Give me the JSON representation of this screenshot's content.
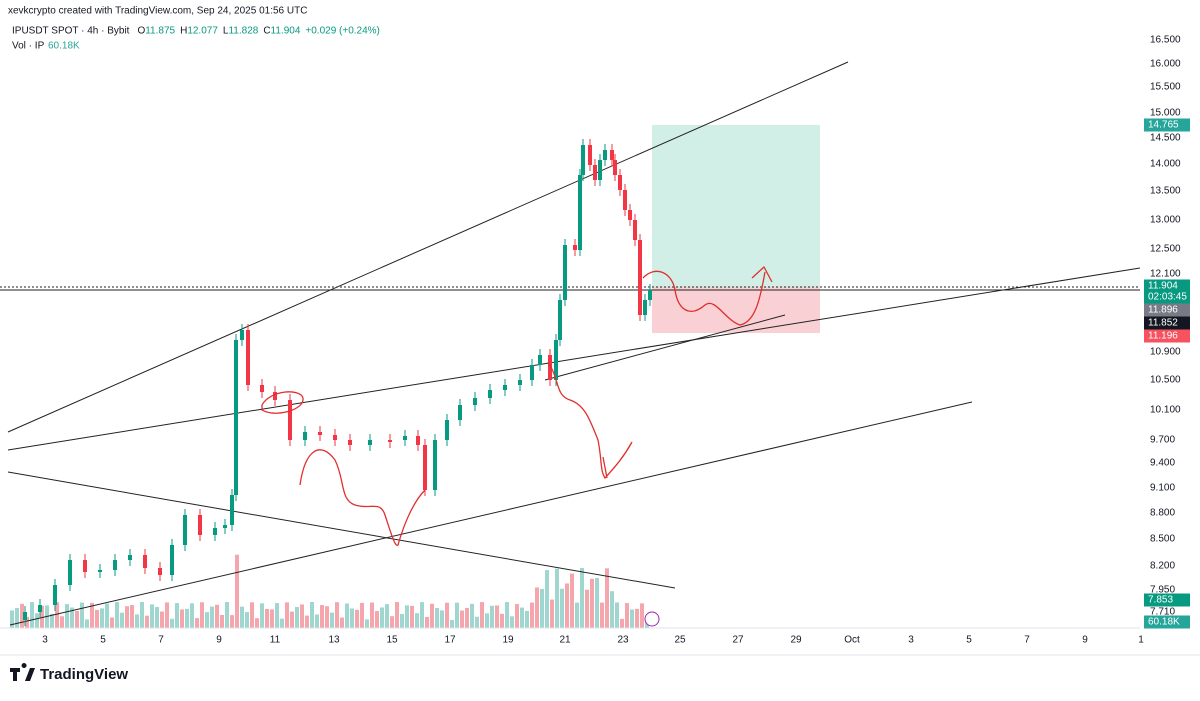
{
  "header": {
    "credit": "xevkcrypto created with TradingView.com, Sep 24, 2025 01:56 UTC",
    "symbol": "IPUSDT SPOT · 4h · Bybit",
    "ohlc": [
      {
        "key": "O",
        "value": "11.875"
      },
      {
        "key": "H",
        "value": "12.077"
      },
      {
        "key": "L",
        "value": "11.828"
      },
      {
        "key": "C",
        "value": "11.904"
      }
    ],
    "change": "+0.029 (+0.24%)",
    "volume_label": "Vol · IP",
    "volume_value": "60.18K"
  },
  "price_axis": [
    "16.500",
    "16.000",
    "15.500",
    "15.000",
    "14.500",
    "14.000",
    "13.500",
    "13.000",
    "12.500",
    "12.100",
    "10.900",
    "10.500",
    "10.100",
    "9.700",
    "9.400",
    "9.100",
    "8.800",
    "8.500",
    "8.200",
    "7.950",
    "7.710"
  ],
  "badges": [
    "14.765",
    "11.904",
    "02:03:45",
    "11.896",
    "11.852",
    "11.196",
    "7.853",
    "60.18K"
  ],
  "time_axis": [
    "3",
    "5",
    "7",
    "9",
    "11",
    "13",
    "15",
    "17",
    "19",
    "21",
    "23",
    "25",
    "27",
    "29",
    "Oct",
    "3",
    "5",
    "7",
    "9",
    "1"
  ],
  "logo": "TradingView"
}
